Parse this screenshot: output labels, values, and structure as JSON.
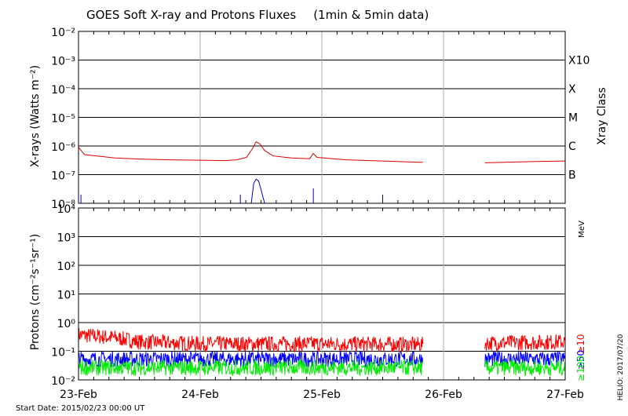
{
  "chart_data": [
    {
      "type": "line",
      "title": "GOES Soft X-ray and Protons Fluxes",
      "subtitle": "(1min & 5min data)",
      "ylabel": "X-rays (Watts m⁻²)",
      "right_label": "Xray Class",
      "yscale": "log",
      "ylim": [
        1e-08,
        0.01
      ],
      "y_tick_labels": [
        "10⁻⁸",
        "10⁻⁷",
        "10⁻⁶",
        "10⁻⁵",
        "10⁻⁴",
        "10⁻³",
        "10⁻²"
      ],
      "xray_classes": [
        {
          "label": "B",
          "value": 1e-07
        },
        {
          "label": "C",
          "value": 1e-06
        },
        {
          "label": "M",
          "value": 1e-05
        },
        {
          "label": "X",
          "value": 0.0001
        },
        {
          "label": "X10",
          "value": 0.001
        }
      ],
      "series": [
        {
          "color": "#dd0000",
          "points": [
            [
              0,
              9e-07
            ],
            [
              0.05,
              5e-07
            ],
            [
              0.3,
              3.8e-07
            ],
            [
              0.5,
              3.5e-07
            ],
            [
              0.75,
              3.3e-07
            ],
            [
              1.0,
              3.2e-07
            ],
            [
              1.2,
              3.1e-07
            ],
            [
              1.3,
              3.3e-07
            ],
            [
              1.38,
              4e-07
            ],
            [
              1.43,
              8e-07
            ],
            [
              1.46,
              1.4e-06
            ],
            [
              1.49,
              1.2e-06
            ],
            [
              1.53,
              7e-07
            ],
            [
              1.6,
              4.5e-07
            ],
            [
              1.75,
              3.8e-07
            ],
            [
              1.9,
              3.6e-07
            ],
            [
              1.93,
              5.5e-07
            ],
            [
              1.96,
              4e-07
            ],
            [
              2.2,
              3.3e-07
            ],
            [
              2.5,
              3e-07
            ],
            [
              2.8,
              2.7e-07
            ],
            [
              2.83,
              2.7e-07
            ],
            null,
            [
              3.34,
              2.6e-07
            ],
            [
              3.5,
              2.7e-07
            ],
            [
              3.8,
              2.9e-07
            ],
            [
              4.0,
              3e-07
            ]
          ]
        },
        {
          "color": "#0000cc",
          "points": [
            [
              1.42,
              1e-08
            ],
            [
              1.44,
              5e-08
            ],
            [
              1.46,
              7e-08
            ],
            [
              1.48,
              6e-08
            ],
            [
              1.5,
              3e-08
            ],
            [
              1.53,
              1e-08
            ]
          ]
        }
      ]
    },
    {
      "type": "line",
      "ylabel": "Protons (cm⁻²s⁻¹sr⁻¹)",
      "yscale": "log",
      "ylim": [
        0.01,
        10000
      ],
      "y_tick_labels": [
        "10⁻²",
        "10⁻¹",
        "10⁰",
        "10¹",
        "10²",
        "10³",
        "10⁴"
      ],
      "threshold_line": 10,
      "energy_unit": "MeV",
      "series": [
        {
          "name": "≥10",
          "color": "#ff0000",
          "level": 0.18,
          "points": [
            [
              0,
              0.35
            ],
            [
              0.3,
              0.28
            ],
            [
              0.5,
              0.2
            ],
            [
              1.0,
              0.17
            ],
            [
              2.0,
              0.17
            ],
            [
              2.83,
              0.16
            ],
            null,
            [
              3.34,
              0.18
            ],
            [
              4.0,
              0.2
            ]
          ]
        },
        {
          "name": "≥50",
          "color": "#0000ff",
          "level": 0.05,
          "points": [
            [
              0,
              0.05
            ],
            [
              2.83,
              0.05
            ],
            null,
            [
              3.34,
              0.05
            ],
            [
              4.0,
              0.05
            ]
          ]
        },
        {
          "name": "≥100",
          "color": "#00ee00",
          "level": 0.025,
          "points": [
            [
              0,
              0.025
            ],
            [
              2.83,
              0.025
            ],
            null,
            [
              3.34,
              0.025
            ],
            [
              4.0,
              0.025
            ]
          ]
        }
      ]
    }
  ],
  "x_axis": {
    "type": "date",
    "categories": [
      "23-Feb",
      "24-Feb",
      "25-Feb",
      "26-Feb",
      "27-Feb"
    ]
  },
  "footer": {
    "start_date": "Start Date: 2015/02/23 00:00 UT",
    "credit": "HELIO: 2017/07/20"
  }
}
